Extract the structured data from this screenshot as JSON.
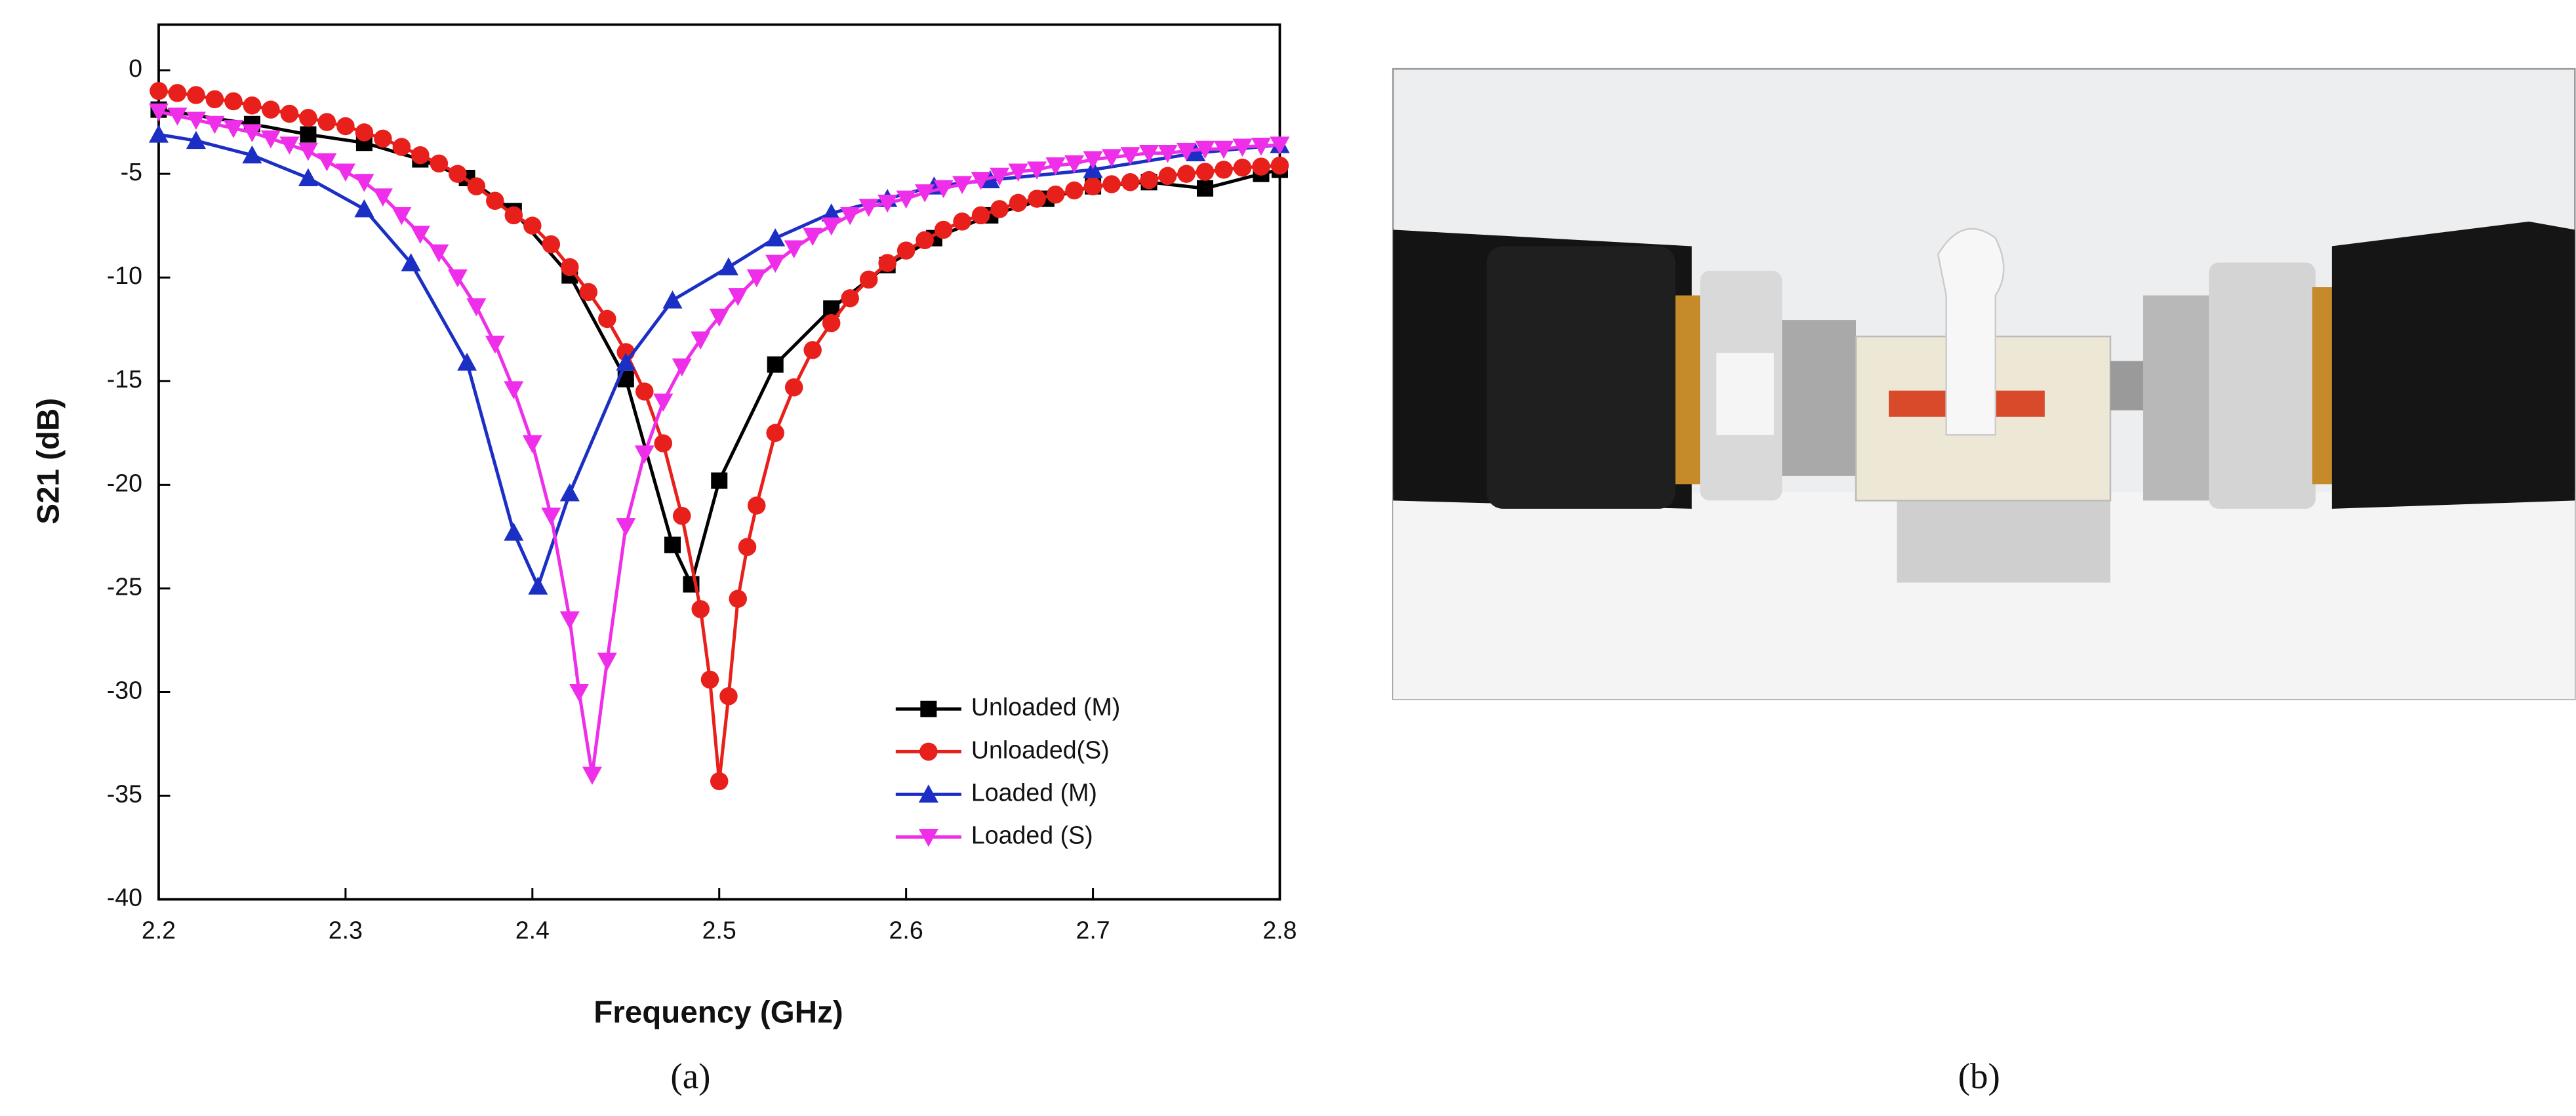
{
  "chart_data": {
    "type": "line",
    "x_label": "Frequency (GHz)",
    "y_label": "S21 (dB)",
    "xlim": [
      2.2,
      2.8
    ],
    "ylim": [
      -40,
      2.2
    ],
    "xticks": [
      2.2,
      2.3,
      2.4,
      2.5,
      2.6,
      2.7,
      2.8
    ],
    "yticks": [
      0,
      -5,
      -10,
      -15,
      -20,
      -25,
      -30,
      -35,
      -40
    ],
    "legend": "lower right",
    "series": [
      {
        "name": "Unloaded (M)",
        "color": "#000000",
        "marker": "square",
        "x": [
          2.2,
          2.25,
          2.28,
          2.31,
          2.34,
          2.365,
          2.39,
          2.42,
          2.45,
          2.475,
          2.485,
          2.5,
          2.53,
          2.56,
          2.59,
          2.615,
          2.645,
          2.675,
          2.7,
          2.73,
          2.76,
          2.79,
          2.8
        ],
        "values": [
          -1.9,
          -2.6,
          -3.1,
          -3.5,
          -4.3,
          -5.2,
          -6.8,
          -9.9,
          -14.9,
          -22.9,
          -24.8,
          -19.8,
          -14.2,
          -11.5,
          -9.4,
          -8.1,
          -7,
          -6.2,
          -5.6,
          -5.4,
          -5.7,
          -5,
          -4.8
        ]
      },
      {
        "name": "Unloaded(S)",
        "color": "#e8201c",
        "marker": "circle",
        "x": [
          2.2,
          2.21,
          2.22,
          2.23,
          2.24,
          2.25,
          2.26,
          2.27,
          2.28,
          2.29,
          2.3,
          2.31,
          2.32,
          2.33,
          2.34,
          2.35,
          2.36,
          2.37,
          2.38,
          2.39,
          2.4,
          2.41,
          2.42,
          2.43,
          2.44,
          2.45,
          2.46,
          2.47,
          2.48,
          2.49,
          2.495,
          2.5,
          2.505,
          2.51,
          2.515,
          2.52,
          2.53,
          2.54,
          2.55,
          2.56,
          2.57,
          2.58,
          2.59,
          2.6,
          2.61,
          2.62,
          2.63,
          2.64,
          2.65,
          2.66,
          2.67,
          2.68,
          2.69,
          2.7,
          2.71,
          2.72,
          2.73,
          2.74,
          2.75,
          2.76,
          2.77,
          2.78,
          2.79,
          2.8
        ],
        "values": [
          -1,
          -1.1,
          -1.2,
          -1.4,
          -1.5,
          -1.7,
          -1.9,
          -2.1,
          -2.3,
          -2.5,
          -2.7,
          -3,
          -3.3,
          -3.7,
          -4.1,
          -4.5,
          -5,
          -5.6,
          -6.3,
          -7,
          -7.5,
          -8.4,
          -9.5,
          -10.7,
          -12,
          -13.6,
          -15.5,
          -18,
          -21.5,
          -26,
          -29.4,
          -34.3,
          -30.2,
          -25.5,
          -23,
          -21,
          -17.5,
          -15.3,
          -13.5,
          -12.2,
          -11,
          -10.1,
          -9.3,
          -8.7,
          -8.2,
          -7.7,
          -7.3,
          -7,
          -6.7,
          -6.4,
          -6.2,
          -6,
          -5.8,
          -5.6,
          -5.5,
          -5.4,
          -5.3,
          -5.1,
          -5,
          -4.9,
          -4.8,
          -4.7,
          -4.65,
          -4.6
        ]
      },
      {
        "name": "Loaded (M)",
        "color": "#1c2fc4",
        "marker": "triangle-up",
        "x": [
          2.2,
          2.22,
          2.25,
          2.28,
          2.31,
          2.335,
          2.365,
          2.39,
          2.403,
          2.42,
          2.45,
          2.475,
          2.505,
          2.53,
          2.56,
          2.59,
          2.615,
          2.645,
          2.7,
          2.755,
          2.8
        ],
        "values": [
          -3.1,
          -3.4,
          -4.1,
          -5.2,
          -6.7,
          -9.3,
          -14.1,
          -22.3,
          -24.9,
          -20.4,
          -14.1,
          -11.1,
          -9.5,
          -8.1,
          -6.9,
          -6.2,
          -5.6,
          -5.3,
          -4.8,
          -4,
          -3.6
        ]
      },
      {
        "name": "Loaded (S)",
        "color": "#ee2ee8",
        "marker": "triangle-down",
        "x": [
          2.2,
          2.21,
          2.22,
          2.23,
          2.24,
          2.25,
          2.26,
          2.27,
          2.28,
          2.29,
          2.3,
          2.31,
          2.32,
          2.33,
          2.34,
          2.35,
          2.36,
          2.37,
          2.38,
          2.39,
          2.4,
          2.41,
          2.42,
          2.425,
          2.432,
          2.44,
          2.45,
          2.46,
          2.47,
          2.48,
          2.49,
          2.5,
          2.51,
          2.52,
          2.53,
          2.54,
          2.55,
          2.56,
          2.57,
          2.58,
          2.59,
          2.6,
          2.61,
          2.62,
          2.63,
          2.64,
          2.65,
          2.66,
          2.67,
          2.68,
          2.69,
          2.7,
          2.71,
          2.72,
          2.73,
          2.74,
          2.75,
          2.76,
          2.77,
          2.78,
          2.79,
          2.8
        ],
        "values": [
          -2,
          -2.2,
          -2.4,
          -2.6,
          -2.8,
          -3,
          -3.3,
          -3.6,
          -3.9,
          -4.4,
          -4.9,
          -5.4,
          -6.1,
          -7,
          -7.9,
          -8.8,
          -10,
          -11.4,
          -13.2,
          -15.4,
          -18,
          -21.5,
          -26.5,
          -30,
          -34,
          -28.5,
          -22,
          -18.5,
          -16,
          -14.3,
          -13,
          -11.9,
          -10.9,
          -10,
          -9.3,
          -8.6,
          -8,
          -7.5,
          -7,
          -6.6,
          -6.4,
          -6.2,
          -5.9,
          -5.7,
          -5.5,
          -5.3,
          -5.1,
          -4.9,
          -4.8,
          -4.6,
          -4.5,
          -4.3,
          -4.2,
          -4.1,
          -4,
          -4,
          -3.9,
          -3.8,
          -3.8,
          -3.7,
          -3.65,
          -3.6
        ]
      }
    ]
  },
  "captions": [
    "(a)",
    "(b)"
  ]
}
